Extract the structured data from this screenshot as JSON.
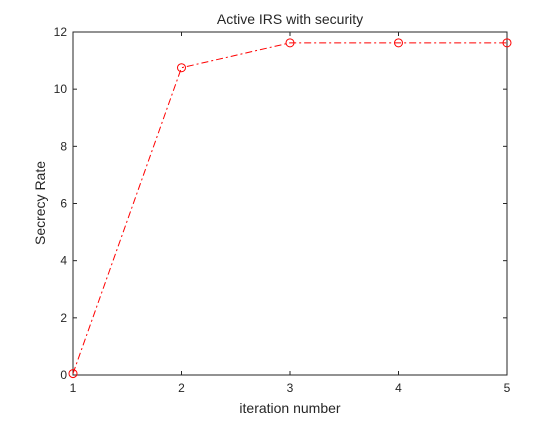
{
  "chart_data": {
    "type": "line",
    "title": "Active IRS with security",
    "xlabel": "iteration number",
    "ylabel": "Secrecy Rate",
    "x": [
      1,
      2,
      3,
      4,
      5
    ],
    "series": [
      {
        "values": [
          0.05,
          10.75,
          11.62,
          11.62,
          11.62
        ],
        "color": "#ff0000",
        "line_style": "dash-dot",
        "marker": "circle"
      }
    ],
    "xlim": [
      1,
      5
    ],
    "ylim": [
      0,
      12
    ],
    "x_ticks": [
      1,
      2,
      3,
      4,
      5
    ],
    "y_ticks": [
      0,
      2,
      4,
      6,
      8,
      10,
      12
    ],
    "grid": false,
    "box": true
  }
}
